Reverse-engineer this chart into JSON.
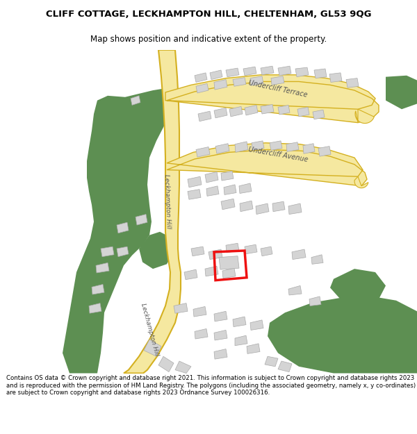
{
  "title_line1": "CLIFF COTTAGE, LECKHAMPTON HILL, CHELTENHAM, GL53 9QG",
  "title_line2": "Map shows position and indicative extent of the property.",
  "footer_text": "Contains OS data © Crown copyright and database right 2021. This information is subject to Crown copyright and database rights 2023 and is reproduced with the permission of HM Land Registry. The polygons (including the associated geometry, namely x, y co-ordinates) are subject to Crown copyright and database rights 2023 Ordnance Survey 100026316.",
  "bg": "#ffffff",
  "green": "#5d8f52",
  "road_fill": "#f5e8a0",
  "road_edge": "#d4b020",
  "bld_fill": "#d4d4d4",
  "bld_edge": "#aaaaaa",
  "red": "#ee1111",
  "label_color": "#555555",
  "title_fs": 9.5,
  "sub_fs": 8.5,
  "foot_fs": 6.2
}
